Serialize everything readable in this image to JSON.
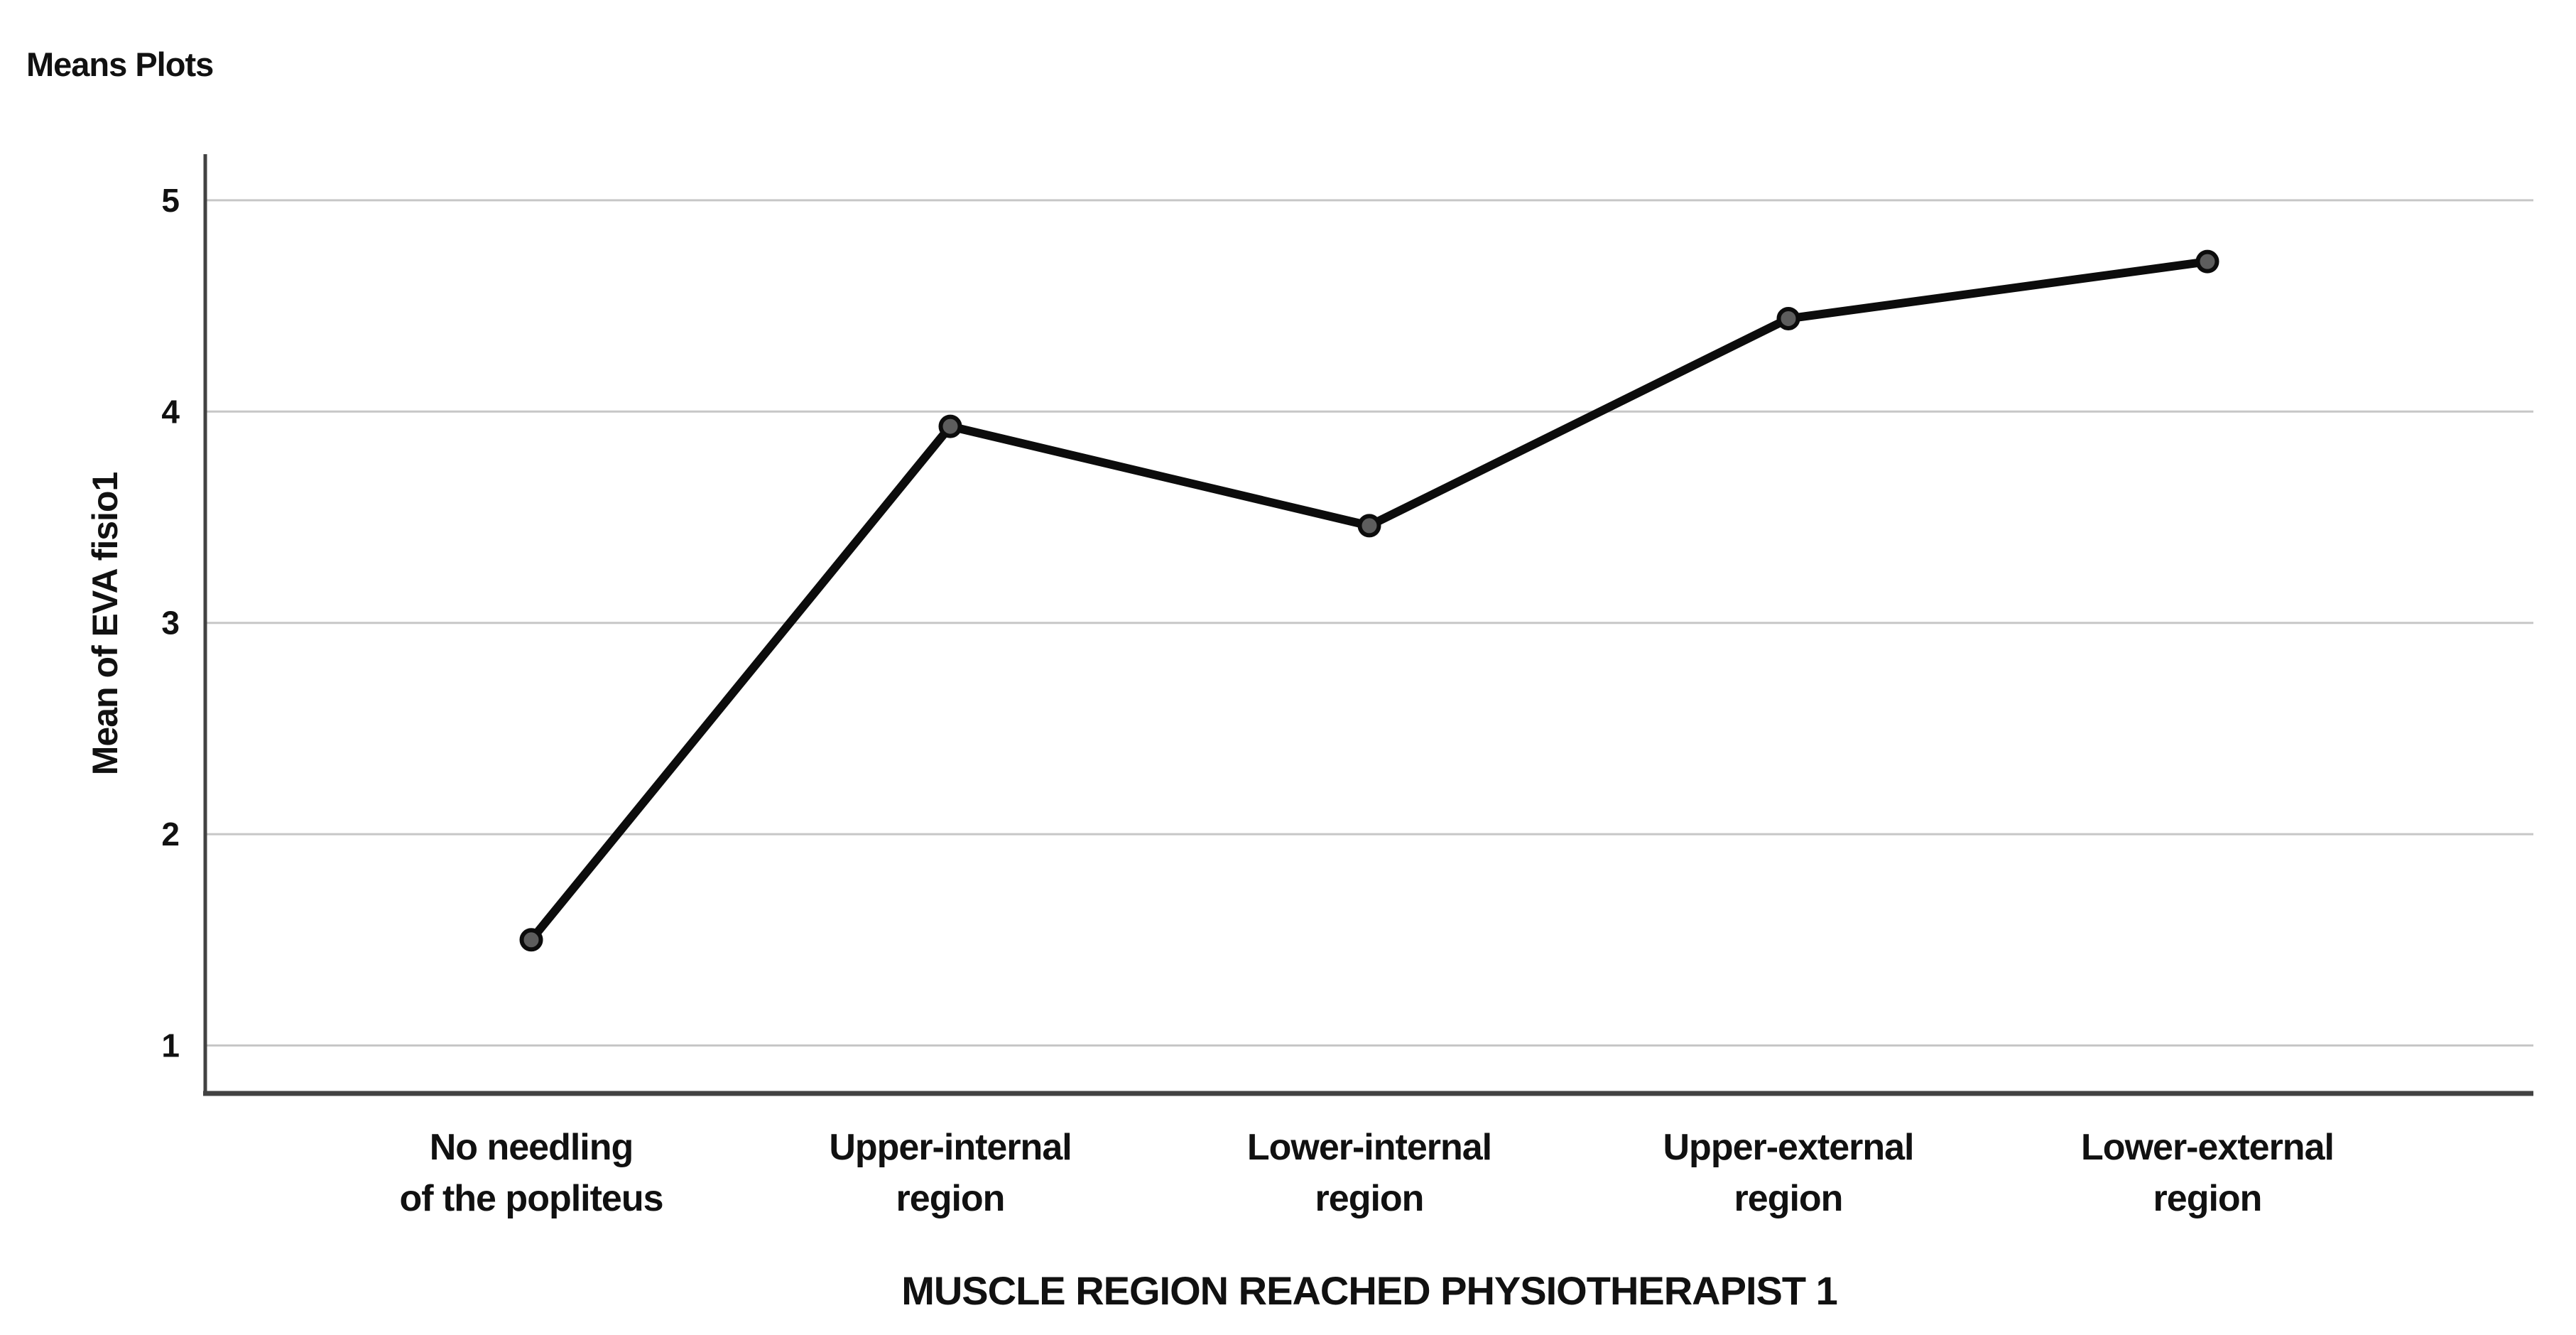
{
  "figure": {
    "background": "#ffffff"
  },
  "chart_data": {
    "type": "line",
    "title": "Means Plots",
    "xlabel": "MUSCLE REGION REACHED PHYSIOTHERAPIST 1",
    "ylabel": "Mean of EVA fisio1",
    "categories": [
      "No needling\nof the popliteus",
      "Upper-internal\nregion",
      "Lower-internal\nregion",
      "Upper-external\nregion",
      "Lower-external\nregion"
    ],
    "values": [
      1.5,
      3.93,
      3.46,
      4.44,
      4.71
    ],
    "yticks": [
      1,
      2,
      3,
      4,
      5
    ],
    "ylim": [
      0.78,
      5.25
    ],
    "grid": "horizontal-only",
    "legend": "none",
    "marker": "filled-circle",
    "colors": {
      "line": "#0c0c0c",
      "marker_fill": "#5d5d5d",
      "marker_stroke": "#0c0c0c",
      "gridline": "#c7c7c7",
      "axis": "#424242",
      "text": "#111111"
    }
  }
}
